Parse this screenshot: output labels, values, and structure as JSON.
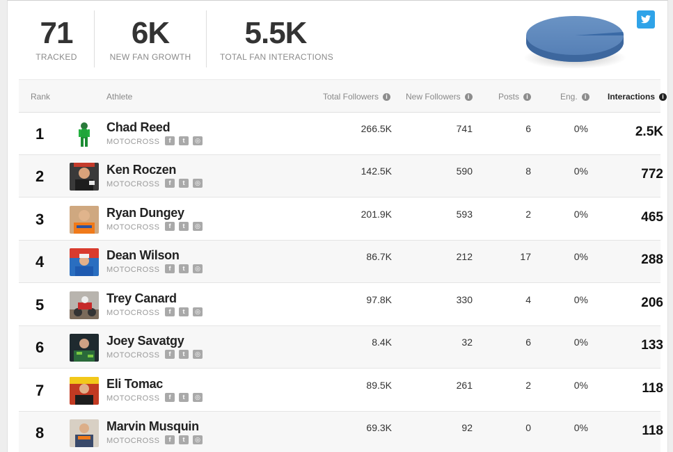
{
  "summary": [
    {
      "value": "71",
      "label": "TRACKED"
    },
    {
      "value": "6K",
      "label": "NEW FAN GROWTH"
    },
    {
      "value": "5.5K",
      "label": "TOTAL FAN INTERACTIONS"
    }
  ],
  "colors": {
    "pie_main": "#5b84b7",
    "pie_slice": "#3f6fa8",
    "twitter": "#2fa3e8"
  },
  "header": {
    "rank": "Rank",
    "athlete": "Athlete",
    "total_followers": "Total Followers",
    "new_followers": "New Followers",
    "posts": "Posts",
    "eng": "Eng.",
    "interactions": "Interactions"
  },
  "rows": [
    {
      "rank": "1",
      "name": "Chad Reed",
      "sport": "MOTOCROSS",
      "total_followers": "266.5K",
      "new_followers": "741",
      "posts": "6",
      "eng": "0%",
      "interactions": "2.5K"
    },
    {
      "rank": "2",
      "name": "Ken Roczen",
      "sport": "MOTOCROSS",
      "total_followers": "142.5K",
      "new_followers": "590",
      "posts": "8",
      "eng": "0%",
      "interactions": "772"
    },
    {
      "rank": "3",
      "name": "Ryan Dungey",
      "sport": "MOTOCROSS",
      "total_followers": "201.9K",
      "new_followers": "593",
      "posts": "2",
      "eng": "0%",
      "interactions": "465"
    },
    {
      "rank": "4",
      "name": "Dean Wilson",
      "sport": "MOTOCROSS",
      "total_followers": "86.7K",
      "new_followers": "212",
      "posts": "17",
      "eng": "0%",
      "interactions": "288"
    },
    {
      "rank": "5",
      "name": "Trey Canard",
      "sport": "MOTOCROSS",
      "total_followers": "97.8K",
      "new_followers": "330",
      "posts": "4",
      "eng": "0%",
      "interactions": "206"
    },
    {
      "rank": "6",
      "name": "Joey Savatgy",
      "sport": "MOTOCROSS",
      "total_followers": "8.4K",
      "new_followers": "32",
      "posts": "6",
      "eng": "0%",
      "interactions": "133"
    },
    {
      "rank": "7",
      "name": "Eli Tomac",
      "sport": "MOTOCROSS",
      "total_followers": "89.5K",
      "new_followers": "261",
      "posts": "2",
      "eng": "0%",
      "interactions": "118"
    },
    {
      "rank": "8",
      "name": "Marvin Musquin",
      "sport": "MOTOCROSS",
      "total_followers": "69.3K",
      "new_followers": "92",
      "posts": "0",
      "eng": "0%",
      "interactions": "118"
    }
  ],
  "icons": {
    "info": "info-icon",
    "facebook": "facebook-icon",
    "twitter": "twitter-icon",
    "instagram": "instagram-icon"
  }
}
